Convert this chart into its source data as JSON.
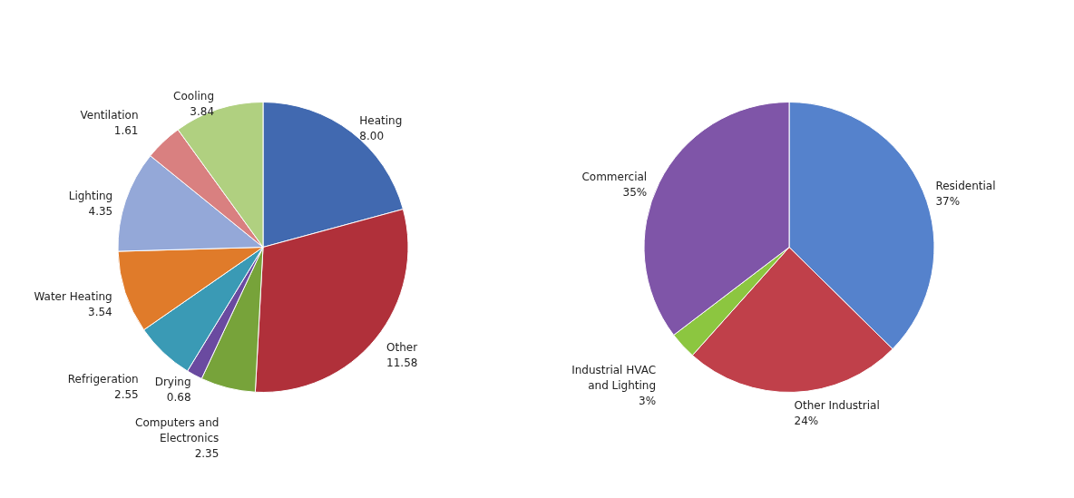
{
  "chart_data": [
    {
      "type": "pie",
      "categories": [
        "Heating",
        "Other",
        "Computers and Electronics",
        "Drying",
        "Refrigeration",
        "Water Heating",
        "Lighting",
        "Ventilation",
        "Cooling"
      ],
      "values": [
        8.0,
        11.58,
        2.35,
        0.68,
        2.55,
        3.54,
        4.35,
        1.61,
        3.84
      ],
      "value_labels": [
        "8.00",
        "11.58",
        "2.35",
        "0.68",
        "2.55",
        "3.54",
        "4.35",
        "1.61",
        "3.84"
      ],
      "colors": [
        "#4169b0",
        "#b0303a",
        "#77a33a",
        "#6a4aa0",
        "#3a9ab5",
        "#e07b2a",
        "#94a8d8",
        "#d98080",
        "#b0d080"
      ],
      "legend": false
    },
    {
      "type": "pie",
      "categories": [
        "Residential",
        "Other Industrial",
        "Industrial HVAC and Lighting",
        "Commercial"
      ],
      "values": [
        37,
        24,
        3,
        35
      ],
      "value_labels": [
        "37%",
        "24%",
        "3%",
        "35%"
      ],
      "colors": [
        "#5582cc",
        "#c0404a",
        "#8cc640",
        "#7f55a8"
      ],
      "legend": false
    }
  ]
}
